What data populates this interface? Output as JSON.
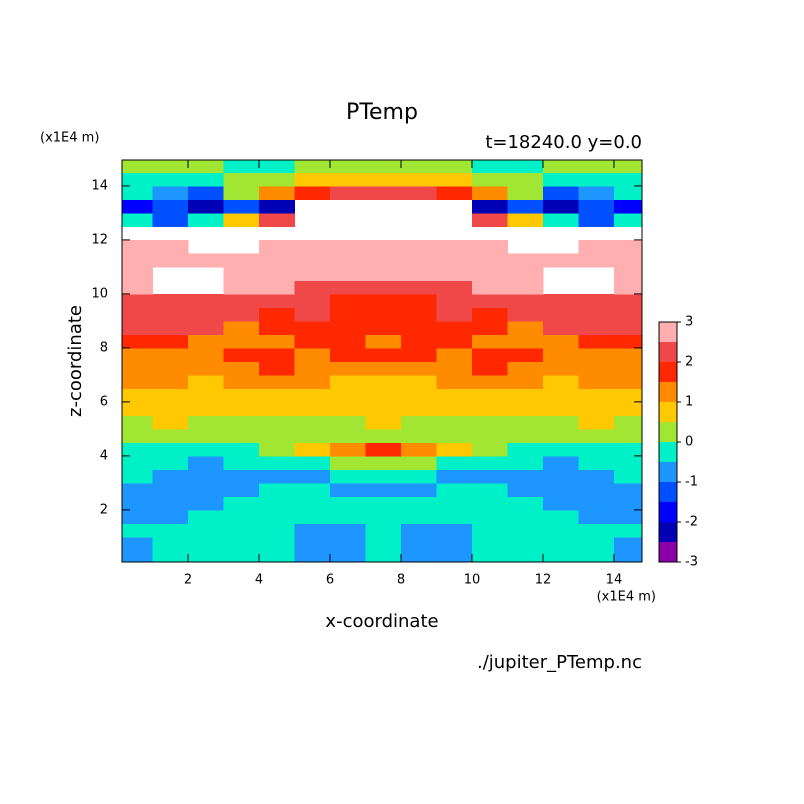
{
  "chart_data": {
    "type": "contour",
    "title": "PTemp",
    "subtitle": "t=18240.0 y=0.0",
    "x_label": "x-coordinate",
    "y_label": "z-coordinate",
    "x_unit": "(x1E4 m)",
    "y_unit": "(x1E4 m)",
    "source": "./jupiter_PTemp.nc",
    "xlim": [
      0.14,
      14.79
    ],
    "ylim": [
      0.07,
      14.96
    ],
    "xticks": [
      2,
      4,
      6,
      8,
      10,
      12,
      14
    ],
    "yticks": [
      2,
      4,
      6,
      8,
      10,
      12,
      14
    ],
    "levels": [
      -3,
      -2.5,
      -2,
      -1.5,
      -1,
      -0.5,
      0,
      0.5,
      1,
      1.5,
      2,
      2.5,
      3
    ],
    "colors": [
      "#8c00a8",
      "#0000b4",
      "#0000ff",
      "#0050ff",
      "#1e96ff",
      "#00f0c8",
      "#a0e632",
      "#ffc800",
      "#ff8c00",
      "#ff2800",
      "#f04848",
      "#ffafaf"
    ],
    "colorbar_ticks": [
      -3,
      -2,
      -1,
      0,
      1,
      2,
      3
    ],
    "x": [
      0.5,
      1.5,
      2.5,
      3.5,
      4.5,
      5.5,
      6.5,
      7.5,
      8.5,
      9.5,
      10.5,
      11.5,
      12.5,
      13.5,
      14.5
    ],
    "y": [
      0.25,
      0.75,
      1.25,
      1.75,
      2.25,
      2.75,
      3.25,
      3.75,
      4.25,
      4.75,
      5.25,
      5.75,
      6.25,
      6.75,
      7.25,
      7.75,
      8.25,
      8.75,
      9.25,
      9.75,
      10.25,
      10.75,
      11.25,
      11.75,
      12.25,
      12.75,
      13.25,
      13.75,
      14.25,
      14.75
    ],
    "z": [
      [
        -0.8,
        -0.3,
        -0.3,
        -0.3,
        -0.3,
        -0.8,
        -0.8,
        -0.3,
        -0.8,
        -0.8,
        -0.3,
        -0.3,
        -0.3,
        -0.3,
        -0.8
      ],
      [
        -0.8,
        -0.3,
        -0.3,
        -0.3,
        -0.3,
        -0.8,
        -0.8,
        -0.3,
        -0.8,
        -0.8,
        -0.3,
        -0.3,
        -0.3,
        -0.3,
        -0.8
      ],
      [
        -0.3,
        -0.3,
        -0.3,
        -0.3,
        -0.3,
        -0.8,
        -0.8,
        -0.3,
        -0.8,
        -0.8,
        -0.3,
        -0.3,
        -0.3,
        -0.3,
        -0.3
      ],
      [
        -0.8,
        -0.8,
        -0.3,
        -0.3,
        -0.3,
        -0.3,
        -0.3,
        -0.3,
        -0.3,
        -0.3,
        -0.3,
        -0.3,
        -0.3,
        -0.8,
        -0.8
      ],
      [
        -0.8,
        -0.8,
        -0.8,
        -0.3,
        -0.3,
        -0.3,
        -0.3,
        -0.3,
        -0.3,
        -0.3,
        -0.3,
        -0.3,
        -0.8,
        -0.8,
        -0.8
      ],
      [
        -0.8,
        -0.8,
        -0.8,
        -0.8,
        -0.3,
        -0.3,
        -0.8,
        -0.8,
        -0.8,
        -0.3,
        -0.3,
        -0.8,
        -0.8,
        -0.8,
        -0.8
      ],
      [
        -0.3,
        -0.8,
        -0.8,
        -0.8,
        -0.8,
        -0.8,
        -0.3,
        -0.3,
        -0.3,
        -0.8,
        -0.8,
        -0.8,
        -0.8,
        -0.8,
        -0.3
      ],
      [
        -0.3,
        -0.3,
        -0.8,
        -0.3,
        -0.3,
        -0.3,
        0.3,
        0.3,
        0.3,
        -0.3,
        -0.3,
        -0.3,
        -0.8,
        -0.3,
        -0.3
      ],
      [
        -0.3,
        -0.3,
        -0.3,
        -0.3,
        0.3,
        0.7,
        1.2,
        1.7,
        1.2,
        0.7,
        0.3,
        -0.3,
        -0.3,
        -0.3,
        -0.3
      ],
      [
        0.3,
        0.3,
        0.3,
        0.3,
        0.3,
        0.3,
        0.3,
        0.3,
        0.3,
        0.3,
        0.3,
        0.3,
        0.3,
        0.3,
        0.3
      ],
      [
        0.3,
        0.7,
        0.3,
        0.3,
        0.3,
        0.3,
        0.3,
        0.7,
        0.3,
        0.3,
        0.3,
        0.3,
        0.3,
        0.7,
        0.3
      ],
      [
        0.7,
        0.7,
        0.7,
        0.7,
        0.7,
        0.7,
        0.7,
        0.7,
        0.7,
        0.7,
        0.7,
        0.7,
        0.7,
        0.7,
        0.7
      ],
      [
        0.7,
        0.7,
        0.7,
        0.7,
        0.7,
        0.7,
        0.7,
        0.7,
        0.7,
        0.7,
        0.7,
        0.7,
        0.7,
        0.7,
        0.7
      ],
      [
        1.2,
        1.2,
        0.7,
        1.2,
        1.2,
        1.2,
        0.7,
        0.7,
        0.7,
        1.2,
        1.2,
        1.2,
        0.7,
        1.2,
        1.2
      ],
      [
        1.2,
        1.2,
        1.2,
        1.2,
        1.7,
        1.2,
        1.2,
        1.2,
        1.2,
        1.2,
        1.7,
        1.2,
        1.2,
        1.2,
        1.2
      ],
      [
        1.2,
        1.2,
        1.2,
        1.7,
        1.7,
        1.2,
        1.7,
        1.7,
        1.7,
        1.2,
        1.7,
        1.7,
        1.2,
        1.2,
        1.2
      ],
      [
        1.7,
        1.7,
        1.2,
        1.2,
        1.2,
        1.7,
        1.7,
        1.2,
        1.7,
        1.7,
        1.2,
        1.2,
        1.2,
        1.7,
        1.7
      ],
      [
        2.2,
        2.2,
        2.2,
        1.2,
        1.7,
        1.7,
        1.7,
        1.7,
        1.7,
        1.7,
        1.7,
        1.2,
        2.2,
        2.2,
        2.2
      ],
      [
        2.2,
        2.2,
        2.2,
        2.2,
        1.7,
        2.2,
        1.7,
        1.7,
        1.7,
        2.2,
        1.7,
        2.2,
        2.2,
        2.2,
        2.2
      ],
      [
        2.2,
        2.2,
        2.2,
        2.2,
        2.2,
        2.2,
        1.7,
        1.7,
        1.7,
        2.2,
        2.2,
        2.2,
        2.2,
        2.2,
        2.2
      ],
      [
        2.7,
        3.2,
        3.2,
        2.7,
        2.7,
        2.2,
        2.2,
        2.2,
        2.2,
        2.2,
        2.7,
        2.7,
        3.2,
        3.2,
        2.7
      ],
      [
        2.7,
        3.2,
        3.2,
        2.7,
        2.7,
        2.7,
        2.7,
        2.7,
        2.7,
        2.7,
        2.7,
        2.7,
        3.2,
        3.2,
        2.7
      ],
      [
        2.7,
        2.7,
        2.7,
        2.7,
        2.7,
        2.7,
        2.7,
        2.7,
        2.7,
        2.7,
        2.7,
        2.7,
        2.7,
        2.7,
        2.7
      ],
      [
        2.7,
        2.7,
        3.2,
        3.2,
        2.7,
        2.7,
        2.7,
        2.7,
        2.7,
        2.7,
        2.7,
        3.2,
        3.2,
        2.7,
        2.7
      ],
      [
        3.2,
        3.2,
        3.2,
        3.2,
        3.2,
        3.2,
        3.2,
        3.2,
        3.2,
        3.2,
        3.2,
        3.2,
        3.2,
        3.2,
        3.2
      ],
      [
        -0.3,
        -1.2,
        -0.3,
        0.7,
        2.2,
        3.2,
        3.2,
        3.2,
        3.2,
        3.2,
        2.2,
        0.7,
        -0.3,
        -1.2,
        -0.3
      ],
      [
        -1.7,
        -1.2,
        -2.2,
        -1.2,
        -2.2,
        3.2,
        3.2,
        3.2,
        3.2,
        3.2,
        -2.2,
        -1.2,
        -2.2,
        -1.2,
        -1.7
      ],
      [
        -0.3,
        -0.8,
        -1.2,
        0.3,
        1.2,
        1.7,
        2.2,
        2.2,
        2.2,
        1.7,
        1.2,
        0.3,
        -1.2,
        -0.8,
        -0.3
      ],
      [
        -0.3,
        -0.3,
        -0.3,
        0.3,
        0.3,
        0.7,
        0.7,
        0.7,
        0.7,
        0.7,
        0.3,
        0.3,
        -0.3,
        -0.3,
        -0.3
      ],
      [
        0.3,
        0.3,
        0.3,
        -0.3,
        -0.3,
        0.3,
        0.3,
        0.3,
        0.3,
        0.3,
        -0.3,
        -0.3,
        0.3,
        0.3,
        0.3
      ]
    ]
  }
}
